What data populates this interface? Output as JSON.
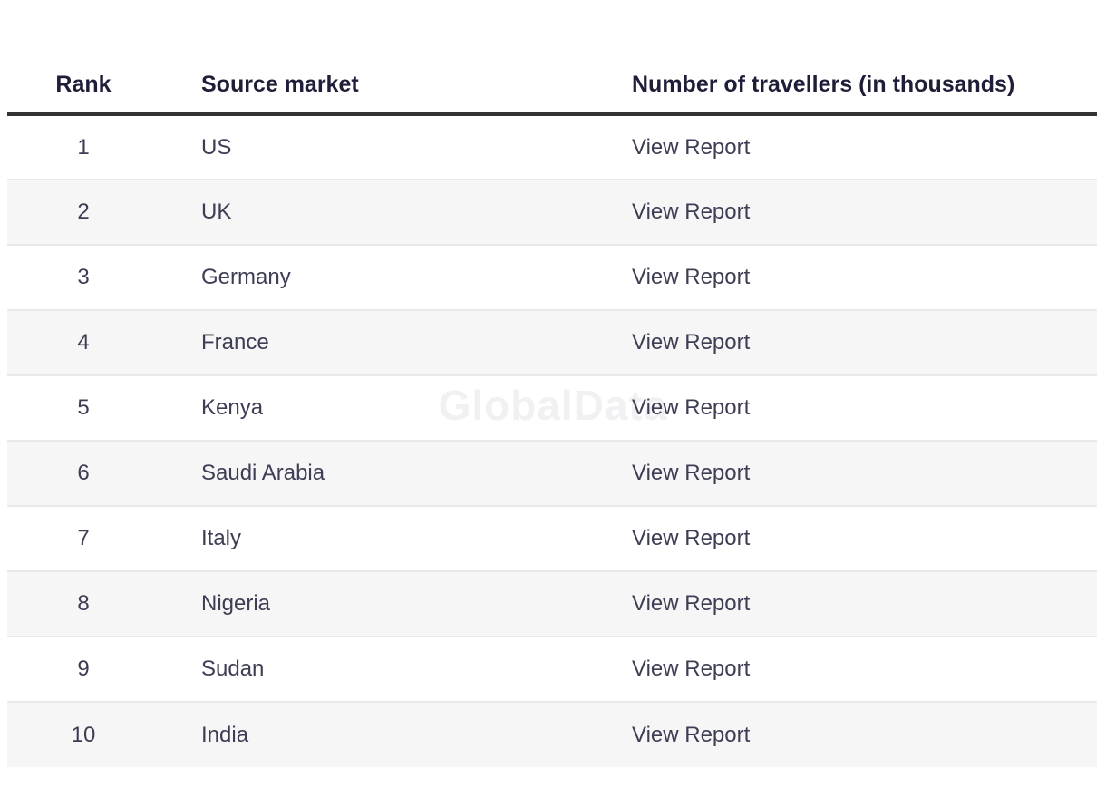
{
  "watermark": {
    "text": "GlobalData"
  },
  "table": {
    "columns": [
      {
        "label": "Rank"
      },
      {
        "label": "Source market"
      },
      {
        "label": "Number of travellers (in thousands)"
      }
    ],
    "rows": [
      {
        "rank": "1",
        "market": "US",
        "action": "View Report"
      },
      {
        "rank": "2",
        "market": "UK",
        "action": "View Report"
      },
      {
        "rank": "3",
        "market": "Germany",
        "action": "View Report"
      },
      {
        "rank": "4",
        "market": "France",
        "action": "View Report"
      },
      {
        "rank": "5",
        "market": "Kenya",
        "action": "View Report"
      },
      {
        "rank": "6",
        "market": "Saudi Arabia",
        "action": "View Report"
      },
      {
        "rank": "7",
        "market": "Italy",
        "action": "View Report"
      },
      {
        "rank": "8",
        "market": "Nigeria",
        "action": "View Report"
      },
      {
        "rank": "9",
        "market": "Sudan",
        "action": "View Report"
      },
      {
        "rank": "10",
        "market": "India",
        "action": "View Report"
      }
    ]
  },
  "colors": {
    "header_text": "#1e1e38",
    "body_text": "#3d3d54",
    "header_rule": "#333333",
    "row_alt_background": "#f6f6f7",
    "row_separator": "#e9e9eb",
    "watermark_text": "#f1f1f4"
  }
}
